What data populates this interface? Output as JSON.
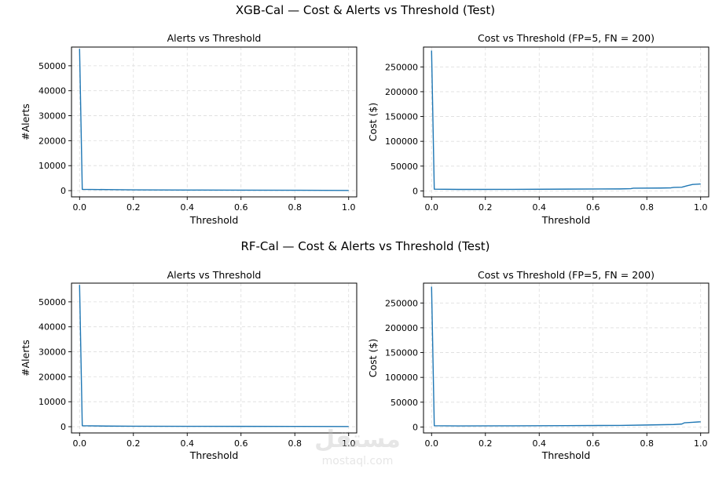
{
  "figures": [
    {
      "suptitle": "XGB-Cal — Cost & Alerts vs Threshold (Test)",
      "panels": [
        {
          "title": "Alerts vs Threshold",
          "xlabel": "Threshold",
          "ylabel": "#Alerts"
        },
        {
          "title": "Cost vs Threshold (FP=5, FN = 200)",
          "xlabel": "Threshold",
          "ylabel": "Cost ($)"
        }
      ]
    },
    {
      "suptitle": "RF-Cal — Cost & Alerts vs Threshold (Test)",
      "panels": [
        {
          "title": "Alerts vs Threshold",
          "xlabel": "Threshold",
          "ylabel": "#Alerts"
        },
        {
          "title": "Cost vs Threshold (FP=5, FN = 200)",
          "xlabel": "Threshold",
          "ylabel": "Cost ($)"
        }
      ]
    }
  ],
  "watermark": {
    "arabic": "مستقل",
    "latin": "mostaql.com"
  },
  "colors": {
    "line": "#1f77b4",
    "grid": "#dddddd"
  },
  "chart_data": [
    {
      "type": "line",
      "title": "Alerts vs Threshold",
      "xlabel": "Threshold",
      "ylabel": "#Alerts",
      "xlim": [
        -0.03,
        1.03
      ],
      "ylim": [
        -2500,
        57500
      ],
      "xticks": [
        "0.0",
        "0.2",
        "0.4",
        "0.6",
        "0.8",
        "1.0"
      ],
      "yticks": [
        "0",
        "10000",
        "20000",
        "30000",
        "40000",
        "50000"
      ],
      "grid": true,
      "series": [
        {
          "x": [
            0.0,
            0.01,
            0.1,
            0.2,
            0.4,
            0.6,
            0.8,
            1.0
          ],
          "y": [
            56800,
            500,
            420,
            300,
            240,
            200,
            150,
            80
          ]
        }
      ]
    },
    {
      "type": "line",
      "title": "Cost vs Threshold (FP=5, FN = 200)",
      "xlabel": "Threshold",
      "ylabel": "Cost ($)",
      "xlim": [
        -0.03,
        1.03
      ],
      "ylim": [
        -12000,
        290000
      ],
      "xticks": [
        "0.0",
        "0.2",
        "0.4",
        "0.6",
        "0.8",
        "1.0"
      ],
      "yticks": [
        "0",
        "50000",
        "100000",
        "150000",
        "200000",
        "250000"
      ],
      "grid": true,
      "series": [
        {
          "x": [
            0.0,
            0.01,
            0.1,
            0.3,
            0.5,
            0.7,
            0.74,
            0.75,
            0.85,
            0.89,
            0.9,
            0.93,
            0.95,
            0.97,
            1.0
          ],
          "y": [
            283000,
            3500,
            3000,
            3200,
            3600,
            4000,
            4500,
            5500,
            5800,
            6200,
            7000,
            7500,
            10500,
            13000,
            14000
          ]
        }
      ]
    },
    {
      "type": "line",
      "title": "Alerts vs Threshold",
      "xlabel": "Threshold",
      "ylabel": "#Alerts",
      "xlim": [
        -0.03,
        1.03
      ],
      "ylim": [
        -2500,
        57500
      ],
      "xticks": [
        "0.0",
        "0.2",
        "0.4",
        "0.6",
        "0.8",
        "1.0"
      ],
      "yticks": [
        "0",
        "10000",
        "20000",
        "30000",
        "40000",
        "50000"
      ],
      "grid": true,
      "series": [
        {
          "x": [
            0.0,
            0.01,
            0.1,
            0.2,
            0.4,
            0.6,
            0.8,
            1.0
          ],
          "y": [
            56800,
            400,
            250,
            200,
            160,
            130,
            100,
            60
          ]
        }
      ]
    },
    {
      "type": "line",
      "title": "Cost vs Threshold (FP=5, FN = 200)",
      "xlabel": "Threshold",
      "ylabel": "Cost ($)",
      "xlim": [
        -0.03,
        1.03
      ],
      "ylim": [
        -12000,
        290000
      ],
      "xticks": [
        "0.0",
        "0.2",
        "0.4",
        "0.6",
        "0.8",
        "1.0"
      ],
      "yticks": [
        "0",
        "50000",
        "100000",
        "150000",
        "200000",
        "250000"
      ],
      "grid": true,
      "series": [
        {
          "x": [
            0.0,
            0.01,
            0.1,
            0.3,
            0.5,
            0.7,
            0.8,
            0.9,
            0.93,
            0.94,
            0.97,
            1.0
          ],
          "y": [
            283000,
            2500,
            2200,
            2400,
            2700,
            3200,
            4000,
            5000,
            6000,
            8500,
            9500,
            10500
          ]
        }
      ]
    }
  ]
}
